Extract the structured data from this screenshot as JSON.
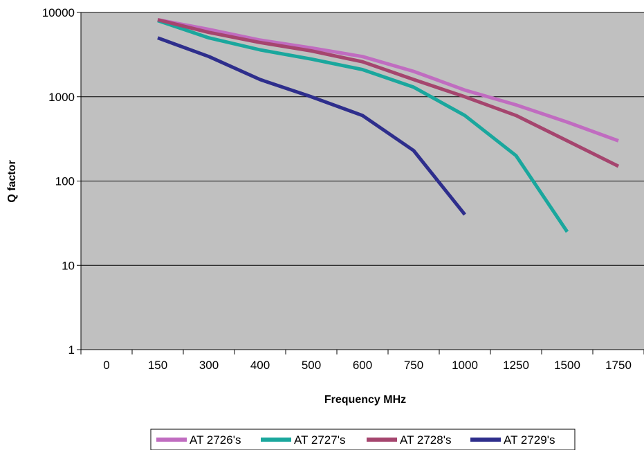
{
  "chart_data": {
    "type": "line",
    "title": "",
    "xlabel": "Frequency MHz",
    "ylabel": "Q factor",
    "y_scale": "log",
    "ylim": [
      1,
      10000
    ],
    "y_ticks": [
      "1",
      "10",
      "100",
      "1000",
      "10000"
    ],
    "x_ticks": [
      "0",
      "150",
      "300",
      "400",
      "500",
      "600",
      "750",
      "1000",
      "1250",
      "1500",
      "1750"
    ],
    "grid": "horizontal major gridlines",
    "plot_background": "#c0c0c0",
    "legend_position": "bottom",
    "series": [
      {
        "name": "AT 2726's",
        "color": "#c06cc0",
        "points": [
          [
            "150",
            8200
          ],
          [
            "300",
            6300
          ],
          [
            "400",
            4700
          ],
          [
            "500",
            3800
          ],
          [
            "600",
            3000
          ],
          [
            "750",
            2000
          ],
          [
            "1000",
            1200
          ],
          [
            "1250",
            800
          ],
          [
            "1500",
            500
          ],
          [
            "1750",
            300
          ]
        ]
      },
      {
        "name": "AT 2727's",
        "color": "#1aa79d",
        "points": [
          [
            "150",
            8000
          ],
          [
            "300",
            5000
          ],
          [
            "400",
            3600
          ],
          [
            "500",
            2800
          ],
          [
            "600",
            2100
          ],
          [
            "750",
            1300
          ],
          [
            "1000",
            600
          ],
          [
            "1250",
            200
          ],
          [
            "1500",
            25
          ]
        ]
      },
      {
        "name": "AT 2728's",
        "color": "#a5456e",
        "points": [
          [
            "150",
            8200
          ],
          [
            "300",
            5800
          ],
          [
            "400",
            4400
          ],
          [
            "500",
            3500
          ],
          [
            "600",
            2600
          ],
          [
            "750",
            1600
          ],
          [
            "1000",
            1000
          ],
          [
            "1250",
            600
          ],
          [
            "1500",
            300
          ],
          [
            "1750",
            150
          ]
        ]
      },
      {
        "name": "AT 2729's",
        "color": "#2e2e8c",
        "points": [
          [
            "150",
            5000
          ],
          [
            "300",
            3000
          ],
          [
            "400",
            1600
          ],
          [
            "500",
            1000
          ],
          [
            "600",
            600
          ],
          [
            "750",
            230
          ],
          [
            "1000",
            40
          ]
        ]
      }
    ]
  }
}
